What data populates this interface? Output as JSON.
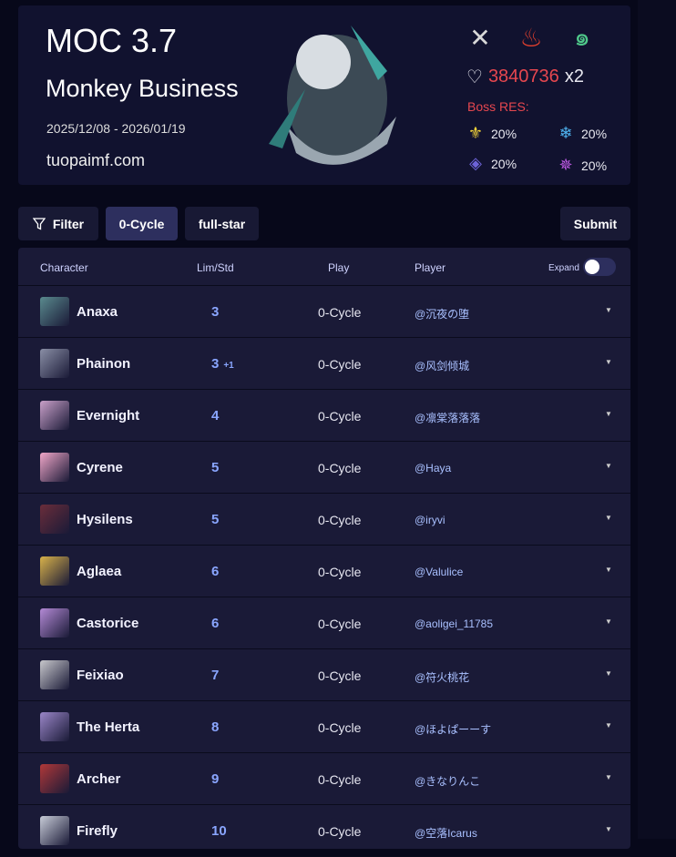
{
  "banner": {
    "title": "MOC 3.7",
    "subtitle": "Monkey Business",
    "dates": "2025/12/08 - 2026/01/19",
    "site": "tuopaimf.com",
    "weaknesses": [
      "physical-icon",
      "fire-icon",
      "wind-icon"
    ],
    "hp": "3840736",
    "hp_mult": "x2",
    "boss_res_label": "Boss RES:",
    "res": [
      {
        "icon": "imaginary-icon",
        "value": "20%",
        "color": "#f2d33a"
      },
      {
        "icon": "ice-icon",
        "value": "20%",
        "color": "#4fb3f0"
      },
      {
        "icon": "quantum-icon",
        "value": "20%",
        "color": "#6d63d9"
      },
      {
        "icon": "lightning-icon",
        "value": "20%",
        "color": "#c05ae6"
      }
    ]
  },
  "toolbar": {
    "filter": "Filter",
    "cycle": "0-Cycle",
    "fullstar": "full-star",
    "submit": "Submit"
  },
  "table": {
    "headers": {
      "character": "Character",
      "lim": "Lim/Std",
      "play": "Play",
      "player": "Player",
      "expand": "Expand"
    },
    "rows": [
      {
        "name": "Anaxa",
        "lim": "3",
        "extra": "",
        "play": "0-Cycle",
        "player": "@沉夜の堕",
        "color": "#5a8a8e"
      },
      {
        "name": "Phainon",
        "lim": "3",
        "extra": "+1",
        "play": "0-Cycle",
        "player": "@风剑倾城",
        "color": "#8a8fa6"
      },
      {
        "name": "Evernight",
        "lim": "4",
        "extra": "",
        "play": "0-Cycle",
        "player": "@凛棠落落落",
        "color": "#c9a0c9"
      },
      {
        "name": "Cyrene",
        "lim": "5",
        "extra": "",
        "play": "0-Cycle",
        "player": "@Haya",
        "color": "#f0a6c8"
      },
      {
        "name": "Hysilens",
        "lim": "5",
        "extra": "",
        "play": "0-Cycle",
        "player": "@iryvi",
        "color": "#6a2d3a"
      },
      {
        "name": "Aglaea",
        "lim": "6",
        "extra": "",
        "play": "0-Cycle",
        "player": "@Valulice",
        "color": "#d9b24a"
      },
      {
        "name": "Castorice",
        "lim": "6",
        "extra": "",
        "play": "0-Cycle",
        "player": "@aoligei_11785",
        "color": "#b48ad6"
      },
      {
        "name": "Feixiao",
        "lim": "7",
        "extra": "",
        "play": "0-Cycle",
        "player": "@符火桃花",
        "color": "#c8c8cc"
      },
      {
        "name": "The Herta",
        "lim": "8",
        "extra": "",
        "play": "0-Cycle",
        "player": "@ほよぱーーす",
        "color": "#9a86c8"
      },
      {
        "name": "Archer",
        "lim": "9",
        "extra": "",
        "play": "0-Cycle",
        "player": "@きなりんこ",
        "color": "#b03838"
      },
      {
        "name": "Firefly",
        "lim": "10",
        "extra": "",
        "play": "0-Cycle",
        "player": "@空落Icarus",
        "color": "#c8ccd8"
      }
    ]
  }
}
